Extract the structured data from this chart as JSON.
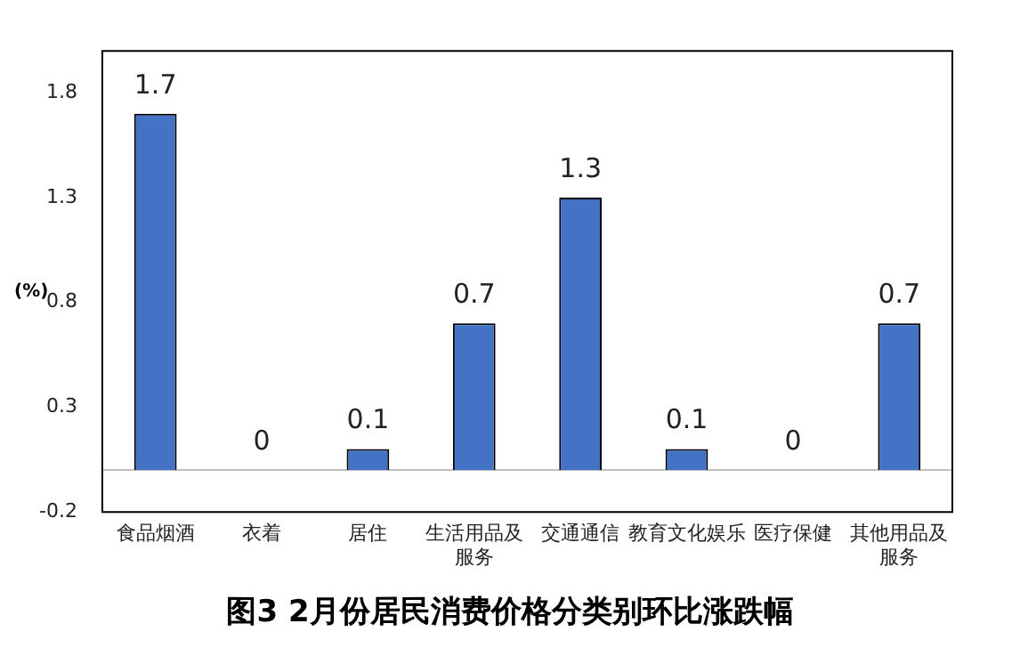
{
  "chart_data": {
    "type": "bar",
    "title": "图3  2月份居民消费价格分类别环比涨跌幅",
    "ylabel": "(%)",
    "categories": [
      "食品烟酒",
      "衣着",
      "居住",
      "生活用品及服务",
      "交通通信",
      "教育文化娱乐",
      "医疗保健",
      "其他用品及服务"
    ],
    "values": [
      1.7,
      0,
      0.1,
      0.7,
      1.3,
      0.1,
      0,
      0.7
    ],
    "color": "#4472c4",
    "ylim": [
      -0.2,
      2.0
    ],
    "yticks": [
      -0.2,
      0.3,
      0.8,
      1.3,
      1.8
    ],
    "grid": false,
    "data_labels": true,
    "legend": false,
    "ref_lines": [
      {
        "axis": "y",
        "value": 0,
        "color": "#bfbfbf"
      }
    ]
  }
}
